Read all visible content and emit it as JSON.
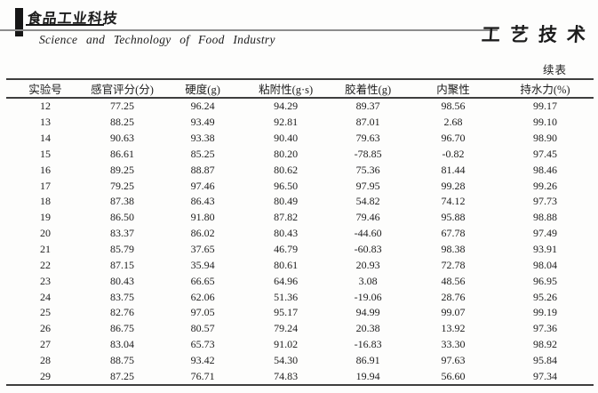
{
  "page": {
    "masthead": {
      "logo_text": "食品工业科技",
      "journal_name_en": "Science and Technology of Food Industry",
      "section_label": "工艺技术"
    },
    "continued_label": "续表"
  },
  "table": {
    "columns": [
      "实验号",
      "感官评分(分)",
      "硬度(g)",
      "粘附性(g·s)",
      "胶着性(g)",
      "内聚性",
      "持水力(%)"
    ],
    "rows": [
      [
        "12",
        "77.25",
        "96.24",
        "94.29",
        "89.37",
        "98.56",
        "99.17"
      ],
      [
        "13",
        "88.25",
        "93.49",
        "92.81",
        "87.01",
        "2.68",
        "99.10"
      ],
      [
        "14",
        "90.63",
        "93.38",
        "90.40",
        "79.63",
        "96.70",
        "98.90"
      ],
      [
        "15",
        "86.61",
        "85.25",
        "80.20",
        "-78.85",
        "-0.82",
        "97.45"
      ],
      [
        "16",
        "89.25",
        "88.87",
        "80.62",
        "75.36",
        "81.44",
        "98.46"
      ],
      [
        "17",
        "79.25",
        "97.46",
        "96.50",
        "97.95",
        "99.28",
        "99.26"
      ],
      [
        "18",
        "87.38",
        "86.43",
        "80.49",
        "54.82",
        "74.12",
        "97.73"
      ],
      [
        "19",
        "86.50",
        "91.80",
        "87.82",
        "79.46",
        "95.88",
        "98.88"
      ],
      [
        "20",
        "83.37",
        "86.02",
        "80.43",
        "-44.60",
        "67.78",
        "97.49"
      ],
      [
        "21",
        "85.79",
        "37.65",
        "46.79",
        "-60.83",
        "98.38",
        "93.91"
      ],
      [
        "22",
        "87.15",
        "35.94",
        "80.61",
        "20.93",
        "72.78",
        "98.04"
      ],
      [
        "23",
        "80.43",
        "66.65",
        "64.96",
        "3.08",
        "48.56",
        "96.95"
      ],
      [
        "24",
        "83.75",
        "62.06",
        "51.36",
        "-19.06",
        "28.76",
        "95.26"
      ],
      [
        "25",
        "82.76",
        "97.05",
        "95.17",
        "94.99",
        "99.07",
        "99.19"
      ],
      [
        "26",
        "86.75",
        "80.57",
        "79.24",
        "20.38",
        "13.92",
        "97.36"
      ],
      [
        "27",
        "83.04",
        "65.73",
        "91.02",
        "-16.83",
        "33.30",
        "98.92"
      ],
      [
        "28",
        "88.75",
        "93.42",
        "54.30",
        "86.91",
        "97.63",
        "95.84"
      ],
      [
        "29",
        "87.25",
        "76.71",
        "74.83",
        "19.94",
        "56.60",
        "97.34"
      ]
    ],
    "column_widths_pct": [
      13.3,
      12.9,
      14.5,
      13.8,
      14.2,
      14.8,
      16.5
    ]
  }
}
